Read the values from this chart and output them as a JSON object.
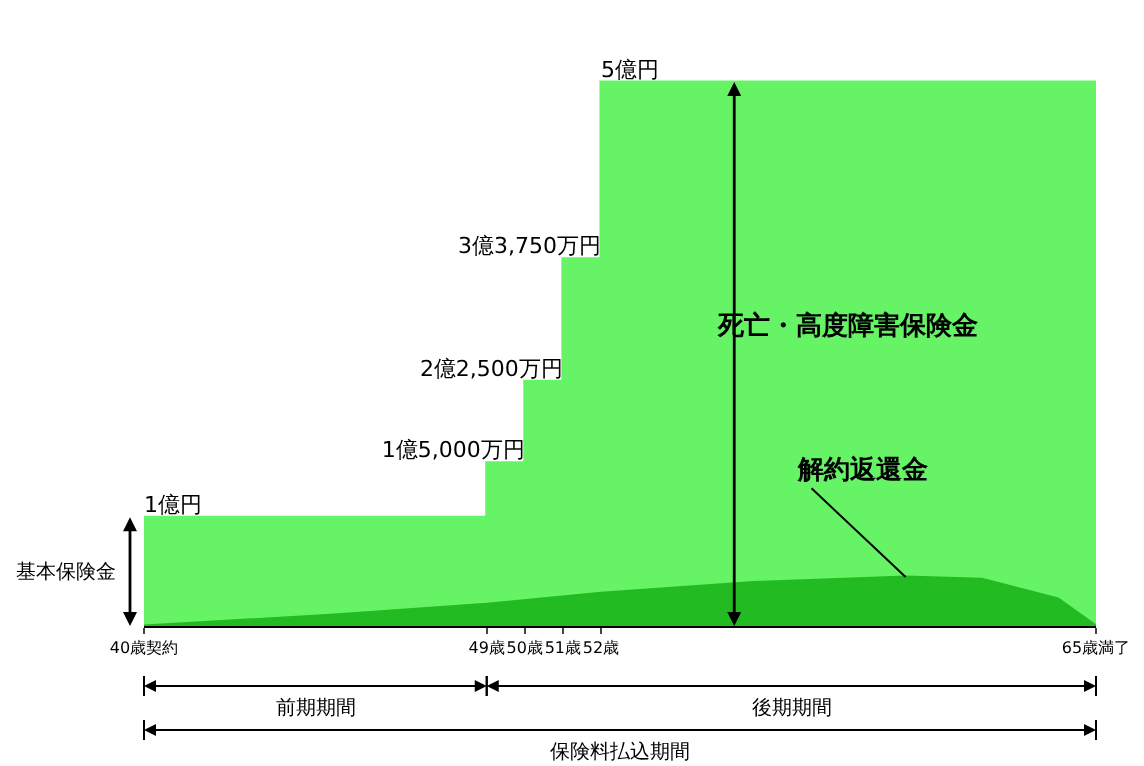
{
  "chart_data": {
    "type": "area",
    "x": [
      40,
      49,
      49,
      50,
      50,
      51,
      51,
      52,
      52,
      65
    ],
    "series": [
      {
        "name": "死亡・高度障害保険金",
        "color": "#66f466",
        "values": [
          1,
          1,
          1.5,
          1.5,
          2.25,
          2.25,
          3.375,
          3.375,
          5,
          5
        ],
        "value_labels": [
          "1億円",
          null,
          "1億5,000万円",
          null,
          "2億2,500万円",
          null,
          "3億3,750万円",
          null,
          "5億円",
          null
        ]
      },
      {
        "name": "解約返還金",
        "color": "#22bb22",
        "x": [
          40,
          45,
          49,
          52,
          56,
          60,
          62,
          64,
          65
        ],
        "values": [
          0,
          0.1,
          0.2,
          0.3,
          0.4,
          0.45,
          0.43,
          0.25,
          0
        ]
      }
    ],
    "xlim": [
      40,
      65
    ],
    "xticks": [
      {
        "value": 40,
        "label": "40歳契約"
      },
      {
        "value": 49,
        "label": "49歳"
      },
      {
        "value": 50,
        "label": "50歳"
      },
      {
        "value": 51,
        "label": "51歳"
      },
      {
        "value": 52,
        "label": "52歳"
      },
      {
        "value": 65,
        "label": "65歳満了"
      }
    ],
    "tick_labels": "x",
    "annotations": [
      "基本保険金",
      "前期期間",
      "後期期間",
      "保険料払込期間"
    ],
    "legend": false,
    "grid": false
  }
}
